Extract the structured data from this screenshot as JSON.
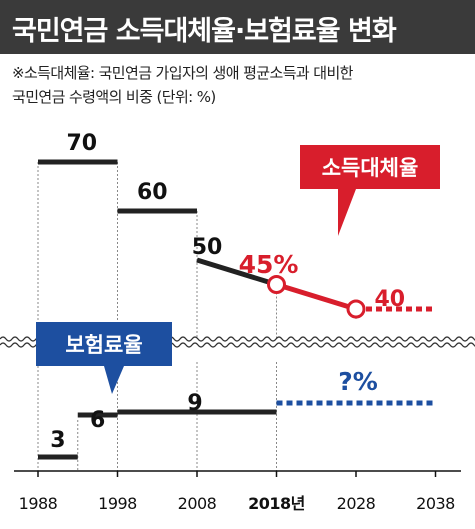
{
  "title": "국민연금 소득대체율·보험료율 변화",
  "note_line1": "※소득대체율: 국민연금 가입자의 생애 평균소득과 대비한",
  "note_line2": "국민연금 수령액의 비중 (단위: %)",
  "colors": {
    "title_bg": "#3a3a3a",
    "black_line": "#222222",
    "red": "#d81e2c",
    "blue": "#1d4fa0",
    "grid": "#888888"
  },
  "chart_data": [
    {
      "type": "line",
      "name": "소득대체율",
      "badge": "소득대체율",
      "x_ticks": [
        "1988",
        "1998",
        "2008",
        "2018년",
        "2028",
        "2038"
      ],
      "segments": [
        {
          "x": [
            1988,
            1998
          ],
          "y": [
            70,
            70
          ],
          "label": "70",
          "style": "black"
        },
        {
          "x": [
            1998,
            2008
          ],
          "y": [
            60,
            60
          ],
          "label": "60",
          "style": "black"
        },
        {
          "x": [
            2008,
            2018
          ],
          "y": [
            50,
            45
          ],
          "label": "50",
          "style": "black"
        },
        {
          "x": [
            2018,
            2028
          ],
          "y": [
            45,
            40
          ],
          "label": "45%",
          "style": "red"
        },
        {
          "x": [
            2028,
            2038
          ],
          "y": [
            40,
            40
          ],
          "label": "40",
          "style": "red-dashed"
        }
      ]
    },
    {
      "type": "line",
      "name": "보험료율",
      "badge": "보험료율",
      "segments": [
        {
          "x": [
            1988,
            1993
          ],
          "y": [
            3,
            3
          ],
          "label": "3",
          "style": "black"
        },
        {
          "x": [
            1993,
            1998
          ],
          "y": [
            6,
            6
          ],
          "label": "6",
          "style": "black"
        },
        {
          "x": [
            1998,
            2018
          ],
          "y": [
            9,
            9
          ],
          "label": "9",
          "style": "black"
        },
        {
          "x": [
            2018,
            2038
          ],
          "y": [
            null,
            null
          ],
          "label": "?%",
          "style": "blue-dashed"
        }
      ]
    }
  ]
}
